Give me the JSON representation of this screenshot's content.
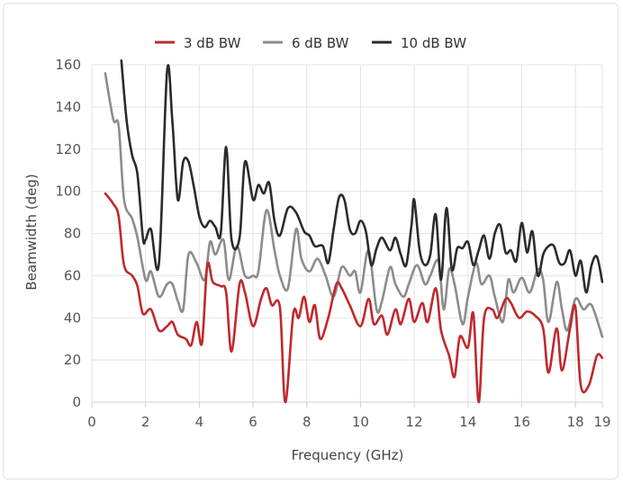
{
  "chart_data": {
    "type": "line",
    "title": "",
    "xlabel": "Frequency (GHz)",
    "ylabel": "Beamwidth (deg)",
    "xlim": [
      0,
      19
    ],
    "ylim": [
      0,
      160
    ],
    "xticks": [
      0,
      2,
      4,
      6,
      8,
      10,
      12,
      14,
      16,
      18,
      19
    ],
    "yticks": [
      0,
      20,
      40,
      60,
      80,
      100,
      120,
      140,
      160
    ],
    "grid": true,
    "legend_position": "top-center",
    "series": [
      {
        "name": "3 dB BW",
        "color": "#c0282d",
        "points": [
          [
            0.5,
            99
          ],
          [
            0.8,
            94
          ],
          [
            1.0,
            88
          ],
          [
            1.2,
            65
          ],
          [
            1.5,
            60
          ],
          [
            1.7,
            55
          ],
          [
            1.9,
            42
          ],
          [
            2.2,
            44
          ],
          [
            2.5,
            34
          ],
          [
            2.8,
            36
          ],
          [
            3.0,
            38
          ],
          [
            3.2,
            32
          ],
          [
            3.5,
            30
          ],
          [
            3.7,
            27
          ],
          [
            3.9,
            38
          ],
          [
            4.1,
            28
          ],
          [
            4.3,
            65
          ],
          [
            4.5,
            57
          ],
          [
            4.8,
            55
          ],
          [
            5.0,
            52
          ],
          [
            5.2,
            24
          ],
          [
            5.5,
            56
          ],
          [
            5.7,
            52
          ],
          [
            6.0,
            36
          ],
          [
            6.3,
            49
          ],
          [
            6.5,
            54
          ],
          [
            6.7,
            46
          ],
          [
            7.0,
            45
          ],
          [
            7.2,
            0
          ],
          [
            7.5,
            42
          ],
          [
            7.7,
            40
          ],
          [
            7.9,
            50
          ],
          [
            8.1,
            38
          ],
          [
            8.3,
            46
          ],
          [
            8.5,
            30
          ],
          [
            8.8,
            40
          ],
          [
            9.1,
            56
          ],
          [
            9.3,
            54
          ],
          [
            9.6,
            46
          ],
          [
            10.0,
            36
          ],
          [
            10.3,
            49
          ],
          [
            10.5,
            37
          ],
          [
            10.8,
            41
          ],
          [
            11.0,
            32
          ],
          [
            11.3,
            44
          ],
          [
            11.5,
            37
          ],
          [
            11.8,
            49
          ],
          [
            12.0,
            38
          ],
          [
            12.3,
            47
          ],
          [
            12.5,
            38
          ],
          [
            12.8,
            54
          ],
          [
            13.0,
            34
          ],
          [
            13.3,
            22
          ],
          [
            13.5,
            12
          ],
          [
            13.7,
            31
          ],
          [
            14.0,
            26
          ],
          [
            14.2,
            42
          ],
          [
            14.4,
            0
          ],
          [
            14.6,
            40
          ],
          [
            14.9,
            44
          ],
          [
            15.1,
            40
          ],
          [
            15.4,
            49
          ],
          [
            15.6,
            47
          ],
          [
            15.9,
            40
          ],
          [
            16.2,
            43
          ],
          [
            16.5,
            41
          ],
          [
            16.8,
            35
          ],
          [
            17.0,
            14
          ],
          [
            17.3,
            35
          ],
          [
            17.5,
            15
          ],
          [
            17.8,
            35
          ],
          [
            18.0,
            45
          ],
          [
            18.2,
            8
          ],
          [
            18.5,
            8
          ],
          [
            18.8,
            22
          ],
          [
            19.0,
            21
          ]
        ]
      },
      {
        "name": "6 dB BW",
        "color": "#8c8c8c",
        "points": [
          [
            0.5,
            156
          ],
          [
            0.8,
            134
          ],
          [
            1.0,
            131
          ],
          [
            1.2,
            96
          ],
          [
            1.5,
            87
          ],
          [
            1.7,
            78
          ],
          [
            2.0,
            58
          ],
          [
            2.2,
            62
          ],
          [
            2.5,
            50
          ],
          [
            2.8,
            56
          ],
          [
            3.0,
            56
          ],
          [
            3.2,
            48
          ],
          [
            3.4,
            44
          ],
          [
            3.6,
            70
          ],
          [
            3.9,
            66
          ],
          [
            4.2,
            58
          ],
          [
            4.4,
            76
          ],
          [
            4.6,
            70
          ],
          [
            4.9,
            77
          ],
          [
            5.1,
            58
          ],
          [
            5.4,
            74
          ],
          [
            5.7,
            60
          ],
          [
            6.0,
            60
          ],
          [
            6.2,
            62
          ],
          [
            6.5,
            91
          ],
          [
            6.8,
            72
          ],
          [
            7.0,
            60
          ],
          [
            7.3,
            54
          ],
          [
            7.6,
            82
          ],
          [
            7.8,
            68
          ],
          [
            8.1,
            62
          ],
          [
            8.4,
            68
          ],
          [
            8.7,
            60
          ],
          [
            9.0,
            50
          ],
          [
            9.3,
            64
          ],
          [
            9.6,
            60
          ],
          [
            9.8,
            62
          ],
          [
            10.0,
            52
          ],
          [
            10.3,
            72
          ],
          [
            10.6,
            44
          ],
          [
            10.8,
            48
          ],
          [
            11.1,
            64
          ],
          [
            11.3,
            56
          ],
          [
            11.6,
            50
          ],
          [
            11.8,
            56
          ],
          [
            12.1,
            65
          ],
          [
            12.4,
            56
          ],
          [
            12.6,
            60
          ],
          [
            12.9,
            67
          ],
          [
            13.1,
            44
          ],
          [
            13.3,
            63
          ],
          [
            13.5,
            56
          ],
          [
            13.8,
            37
          ],
          [
            14.0,
            50
          ],
          [
            14.3,
            66
          ],
          [
            14.5,
            56
          ],
          [
            14.8,
            60
          ],
          [
            15.0,
            50
          ],
          [
            15.3,
            38
          ],
          [
            15.5,
            58
          ],
          [
            15.7,
            52
          ],
          [
            16.0,
            59
          ],
          [
            16.3,
            52
          ],
          [
            16.6,
            63
          ],
          [
            16.8,
            58
          ],
          [
            17.0,
            38
          ],
          [
            17.3,
            57
          ],
          [
            17.5,
            44
          ],
          [
            17.7,
            34
          ],
          [
            18.0,
            49
          ],
          [
            18.3,
            44
          ],
          [
            18.6,
            46
          ],
          [
            19.0,
            31
          ]
        ]
      },
      {
        "name": "10 dB BW",
        "color": "#2b2b2b",
        "points": [
          [
            1.1,
            162
          ],
          [
            1.3,
            133
          ],
          [
            1.5,
            117
          ],
          [
            1.7,
            108
          ],
          [
            1.9,
            78
          ],
          [
            2.0,
            77
          ],
          [
            2.2,
            82
          ],
          [
            2.5,
            66
          ],
          [
            2.8,
            157
          ],
          [
            3.0,
            133
          ],
          [
            3.2,
            96
          ],
          [
            3.4,
            114
          ],
          [
            3.6,
            114
          ],
          [
            3.8,
            102
          ],
          [
            4.0,
            88
          ],
          [
            4.2,
            83
          ],
          [
            4.4,
            86
          ],
          [
            4.6,
            83
          ],
          [
            4.8,
            80
          ],
          [
            5.0,
            121
          ],
          [
            5.2,
            77
          ],
          [
            5.5,
            78
          ],
          [
            5.7,
            114
          ],
          [
            6.0,
            96
          ],
          [
            6.2,
            103
          ],
          [
            6.4,
            99
          ],
          [
            6.6,
            104
          ],
          [
            6.8,
            86
          ],
          [
            7.0,
            79
          ],
          [
            7.3,
            92
          ],
          [
            7.6,
            90
          ],
          [
            7.9,
            81
          ],
          [
            8.1,
            79
          ],
          [
            8.3,
            74
          ],
          [
            8.6,
            74
          ],
          [
            8.8,
            66
          ],
          [
            9.0,
            82
          ],
          [
            9.2,
            97
          ],
          [
            9.4,
            96
          ],
          [
            9.6,
            82
          ],
          [
            9.8,
            80
          ],
          [
            10.0,
            86
          ],
          [
            10.2,
            81
          ],
          [
            10.4,
            65
          ],
          [
            10.6,
            73
          ],
          [
            10.8,
            78
          ],
          [
            11.1,
            72
          ],
          [
            11.3,
            78
          ],
          [
            11.5,
            70
          ],
          [
            11.7,
            65
          ],
          [
            11.9,
            84
          ],
          [
            12.0,
            96
          ],
          [
            12.2,
            72
          ],
          [
            12.4,
            65
          ],
          [
            12.6,
            70
          ],
          [
            12.8,
            89
          ],
          [
            13.0,
            58
          ],
          [
            13.2,
            92
          ],
          [
            13.4,
            63
          ],
          [
            13.6,
            73
          ],
          [
            13.8,
            73
          ],
          [
            14.0,
            76
          ],
          [
            14.2,
            65
          ],
          [
            14.4,
            72
          ],
          [
            14.6,
            79
          ],
          [
            14.8,
            68
          ],
          [
            15.0,
            80
          ],
          [
            15.2,
            84
          ],
          [
            15.4,
            71
          ],
          [
            15.6,
            72
          ],
          [
            15.8,
            67
          ],
          [
            16.0,
            85
          ],
          [
            16.2,
            71
          ],
          [
            16.4,
            81
          ],
          [
            16.6,
            60
          ],
          [
            16.8,
            70
          ],
          [
            17.0,
            74
          ],
          [
            17.2,
            74
          ],
          [
            17.4,
            66
          ],
          [
            17.6,
            66
          ],
          [
            17.8,
            72
          ],
          [
            18.0,
            60
          ],
          [
            18.2,
            67
          ],
          [
            18.4,
            52
          ],
          [
            18.6,
            65
          ],
          [
            18.8,
            69
          ],
          [
            19.0,
            57
          ]
        ]
      }
    ]
  }
}
